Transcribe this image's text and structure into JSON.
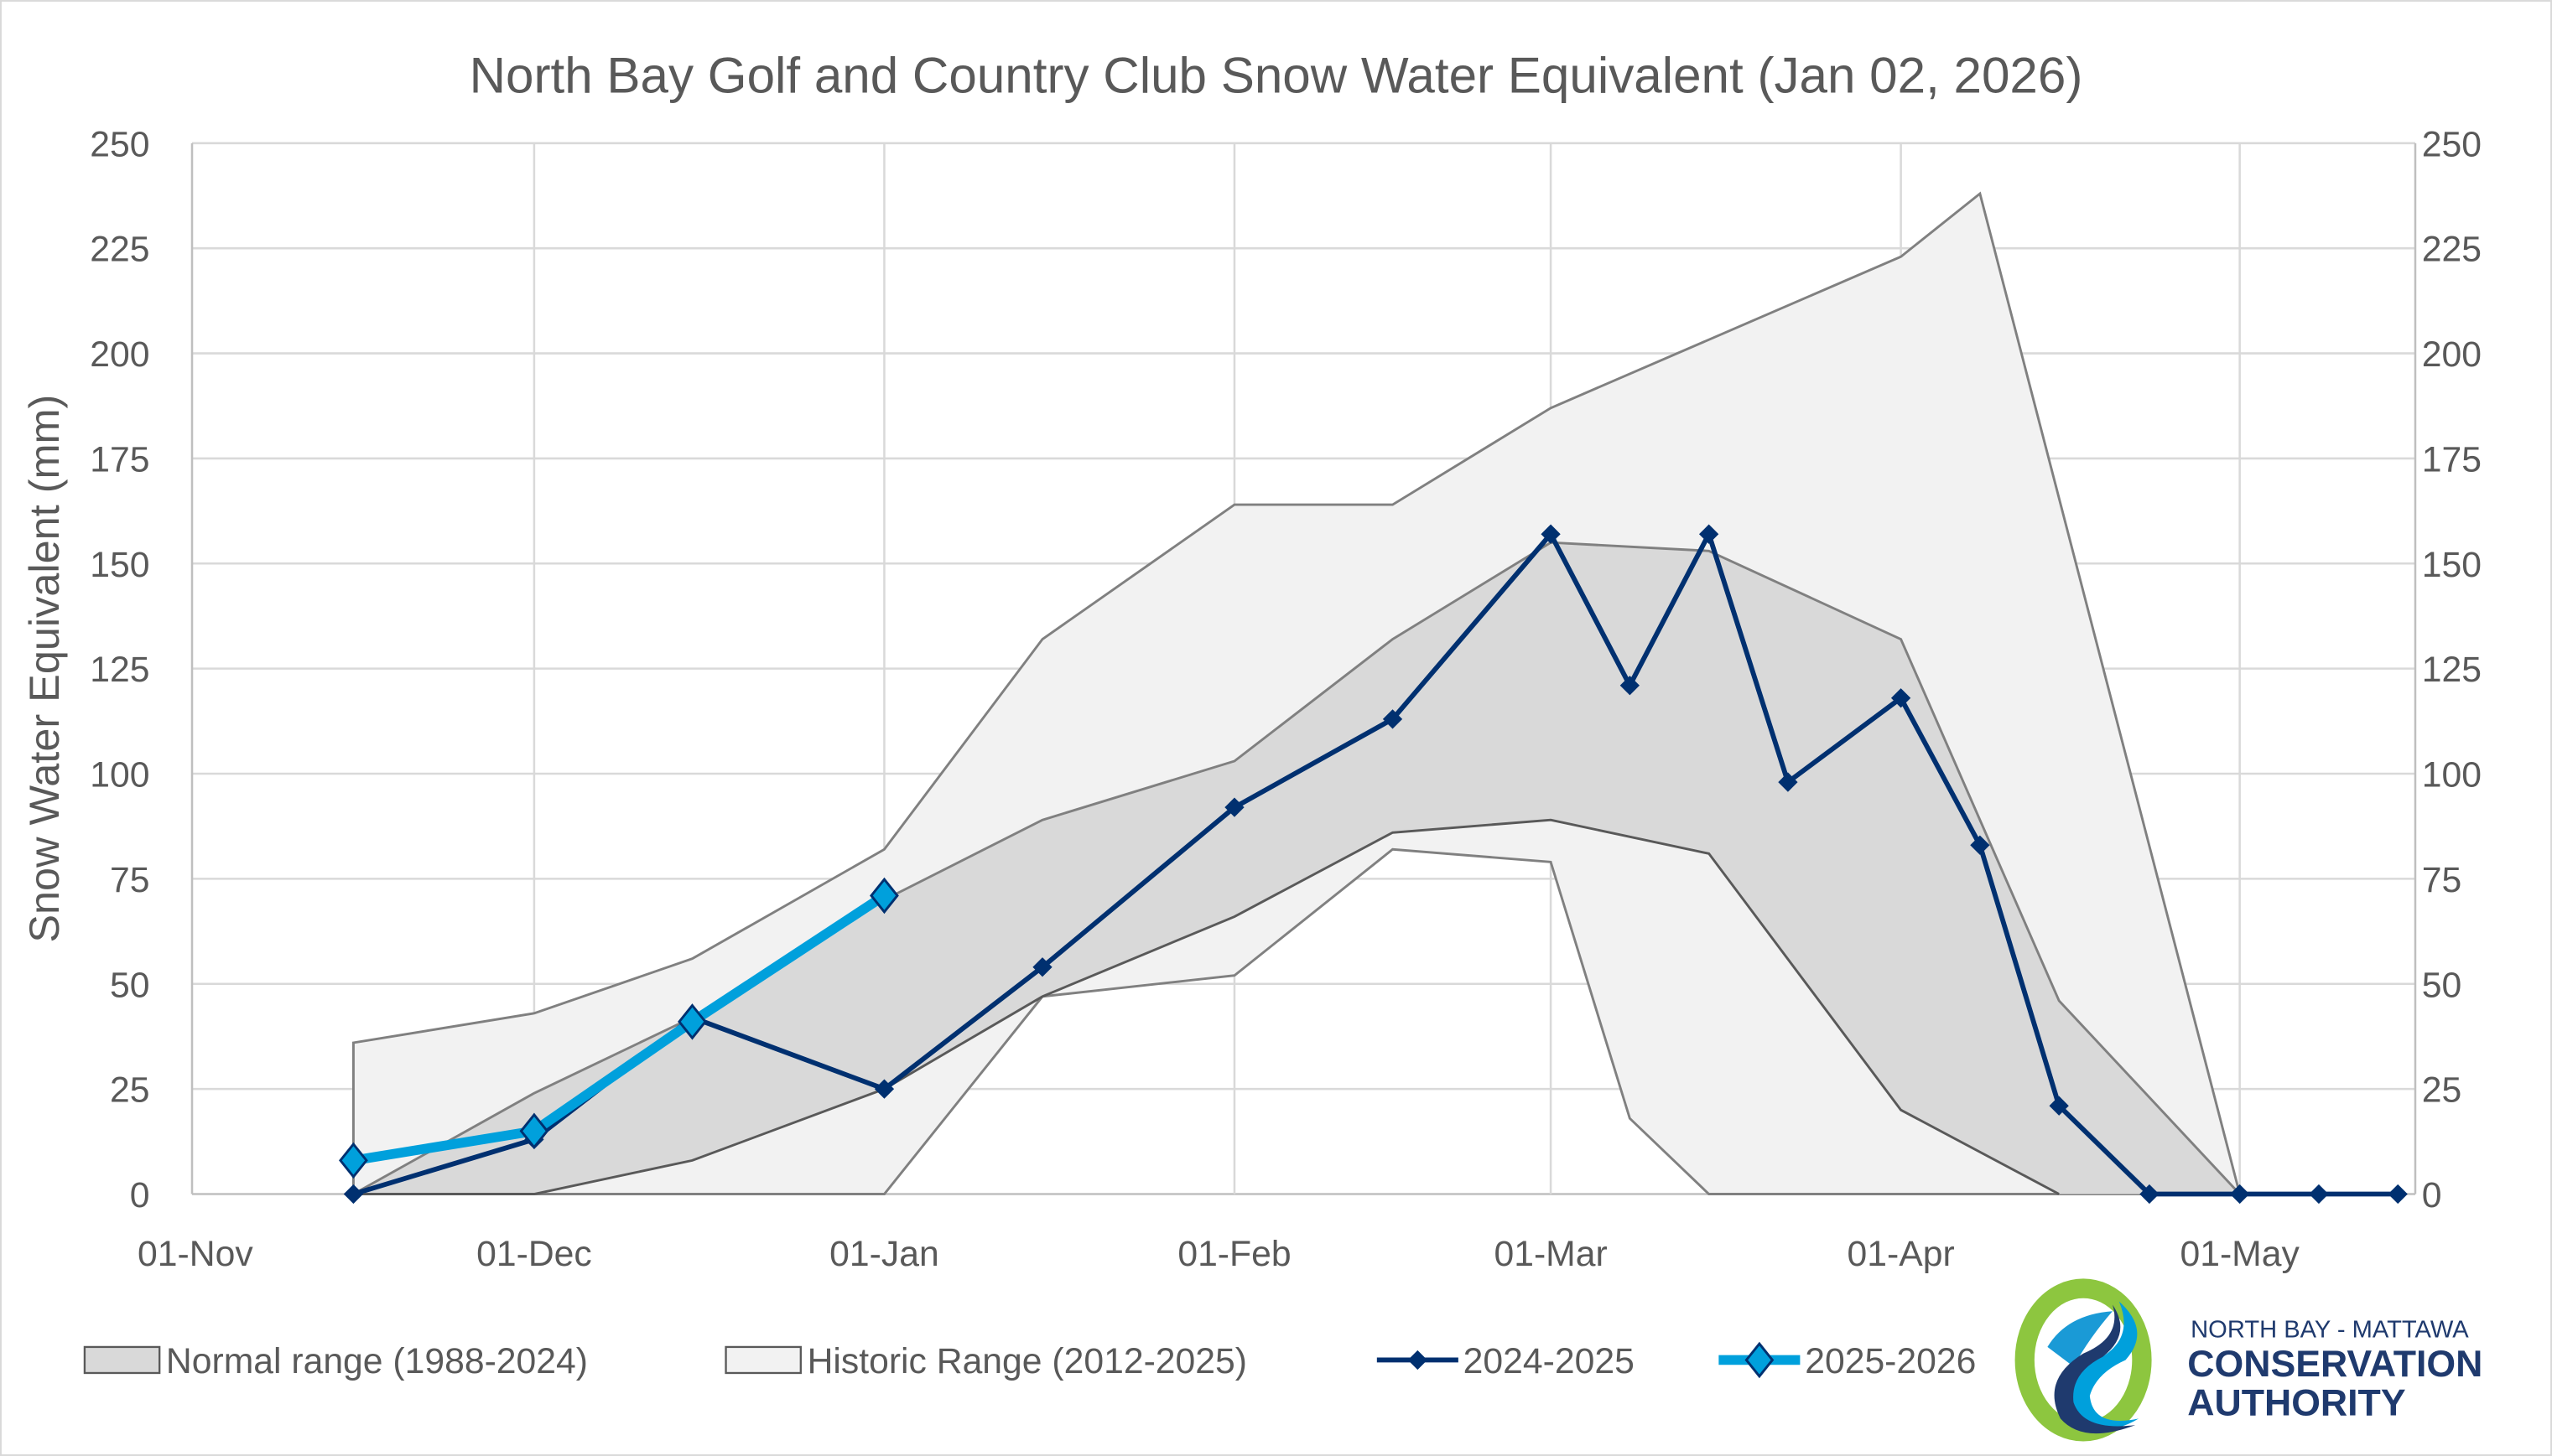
{
  "chart_data": {
    "type": "area",
    "title": "North Bay Golf and Country Club Snow Water Equivalent (Jan 02, 2026)",
    "ylabel": "Snow Water Equivalent (mm)",
    "xlabel": "",
    "ylim": [
      0,
      250
    ],
    "y_ticks": [
      "0",
      "25",
      "50",
      "75",
      "100",
      "125",
      "150",
      "175",
      "200",
      "225",
      "250"
    ],
    "x_ticks": [
      {
        "label": "01-Nov",
        "date": "Nov 1"
      },
      {
        "label": "01-Dec",
        "date": "Dec 1"
      },
      {
        "label": "01-Jan",
        "date": "Jan 1"
      },
      {
        "label": "01-Feb",
        "date": "Feb 1"
      },
      {
        "label": "01-Mar",
        "date": "Mar 1"
      },
      {
        "label": "01-Apr",
        "date": "Apr 1"
      },
      {
        "label": "01-May",
        "date": "May 1"
      }
    ],
    "xlim": [
      "Nov 1",
      "May 18"
    ],
    "grid": true,
    "secondary_y_axis_mirrored": true,
    "legend_position": "bottom",
    "bands": [
      {
        "name": "Historic Range (2012-2025)",
        "color": "#f2f2f2",
        "upper": {
          "x": [
            "Nov 15",
            "Dec 1",
            "Dec 15",
            "Jan 1",
            "Jan 15",
            "Feb 1",
            "Feb 15",
            "Mar 1",
            "Apr 1",
            "Apr 8",
            "May 1"
          ],
          "y": [
            36,
            43,
            56,
            82,
            132,
            164,
            164,
            187,
            223,
            238,
            0
          ]
        },
        "lower": {
          "x": [
            "Nov 15",
            "Jan 1",
            "Jan 15",
            "Feb 1",
            "Feb 15",
            "Mar 1",
            "Mar 8",
            "Mar 15",
            "May 1"
          ],
          "y": [
            0,
            0,
            47,
            52,
            82,
            79,
            18,
            0,
            0
          ]
        }
      },
      {
        "name": "Normal range (1988-2024)",
        "color": "#d9d9d9",
        "upper": {
          "x": [
            "Nov 15",
            "Dec 1",
            "Dec 15",
            "Jan 1",
            "Jan 15",
            "Feb 1",
            "Feb 15",
            "Mar 1",
            "Mar 15",
            "Apr 1",
            "Apr 15",
            "May 1"
          ],
          "y": [
            0,
            24,
            42,
            70,
            89,
            103,
            132,
            155,
            153,
            132,
            46,
            0
          ]
        },
        "lower": {
          "x": [
            "Nov 15",
            "Dec 1",
            "Dec 15",
            "Jan 1",
            "Jan 15",
            "Feb 1",
            "Feb 15",
            "Mar 1",
            "Mar 15",
            "Apr 1",
            "Apr 15"
          ],
          "y": [
            0,
            0,
            8,
            25,
            47,
            66,
            86,
            89,
            81,
            20,
            0
          ]
        }
      }
    ],
    "series": [
      {
        "name": "2024-2025",
        "color": "#003070",
        "x": [
          "Nov 15",
          "Dec 1",
          "Dec 15",
          "Jan 1",
          "Jan 15",
          "Feb 1",
          "Feb 15",
          "Mar 1",
          "Mar 8",
          "Mar 15",
          "Mar 22",
          "Apr 1",
          "Apr 8",
          "Apr 15",
          "Apr 23",
          "May 1",
          "May 8",
          "May 15"
        ],
        "y": [
          0,
          13,
          42,
          25,
          54,
          92,
          113,
          157,
          121,
          157,
          98,
          118,
          83,
          21,
          0,
          0,
          0,
          0
        ]
      },
      {
        "name": "2025-2026",
        "color": "#00a0dc",
        "x": [
          "Nov 15",
          "Dec 1",
          "Dec 15",
          "Jan 1"
        ],
        "y": [
          8,
          15,
          41,
          71
        ]
      }
    ]
  },
  "logo": {
    "line1": "NORTH BAY - MATTAWA",
    "line2": "CONSERVATION",
    "line3": "AUTHORITY",
    "colors": {
      "green": "#8dc63f",
      "light_blue": "#00a0dc",
      "navy": "#1f3a6e"
    }
  }
}
